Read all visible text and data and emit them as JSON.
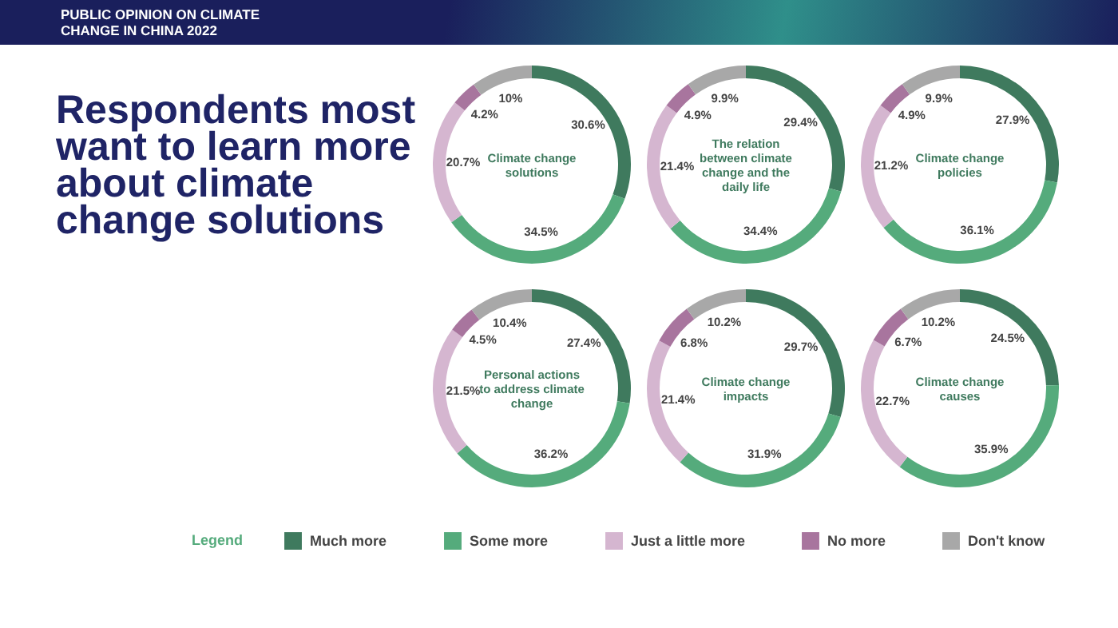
{
  "chart_data": [
    {
      "type": "other",
      "title": "Respondents most want to learn more about climate change solutions",
      "subtitle": "PUBLIC OPINION ON CLIMATE CHANGE IN CHINA 2022"
    },
    {
      "type": "donut",
      "title": "Climate change solutions",
      "categories": [
        "Much more",
        "Some more",
        "Just a little more",
        "No more",
        "Don't know"
      ],
      "values": [
        30.6,
        34.5,
        20.7,
        4.2,
        10
      ],
      "colors": [
        "#3f7a5e",
        "#55ab7c",
        "#d5b6d0",
        "#a8759e",
        "#a8a8a8"
      ],
      "value_labels": [
        "30.6%",
        "34.5%",
        "20.7%",
        "4.2%",
        "10%"
      ],
      "legend": "bottom",
      "legend_title": "Legend"
    },
    {
      "type": "donut",
      "title": "The relation between climate change and the daily life",
      "values": [
        29.4,
        34.4,
        21.4,
        4.9,
        9.9
      ],
      "colors": [
        "#3f7a5e",
        "#55ab7c",
        "#d5b6d0",
        "#a8759e",
        "#a8a8a8"
      ],
      "value_labels": [
        "29.4%",
        "34.4%",
        "21.4%",
        "4.9%",
        "9.9%"
      ]
    },
    {
      "type": "donut",
      "title": "Climate change policies",
      "values": [
        27.9,
        36.1,
        21.2,
        4.9,
        9.9
      ],
      "colors": [
        "#3f7a5e",
        "#55ab7c",
        "#d5b6d0",
        "#a8759e",
        "#a8a8a8"
      ],
      "value_labels": [
        "27.9%",
        "36.1%",
        "21.2%",
        "4.9%",
        "9.9%"
      ]
    },
    {
      "type": "donut",
      "title": "Personal actions to address climate change",
      "values": [
        27.4,
        36.2,
        21.5,
        4.5,
        10.4
      ],
      "colors": [
        "#3f7a5e",
        "#55ab7c",
        "#d5b6d0",
        "#a8759e",
        "#a8a8a8"
      ],
      "value_labels": [
        "27.4%",
        "36.2%",
        "21.5%",
        "4.5%",
        "10.4%"
      ]
    },
    {
      "type": "donut",
      "title": "Climate change impacts",
      "values": [
        29.7,
        31.9,
        21.4,
        6.8,
        10.2
      ],
      "colors": [
        "#3f7a5e",
        "#55ab7c",
        "#d5b6d0",
        "#a8759e",
        "#a8a8a8"
      ],
      "value_labels": [
        "29.7%",
        "31.9%",
        "21.4%",
        "6.8%",
        "10.2%"
      ]
    },
    {
      "type": "donut",
      "title": "Climate change causes",
      "values": [
        24.5,
        35.9,
        22.7,
        6.7,
        10.2
      ],
      "colors": [
        "#3f7a5e",
        "#55ab7c",
        "#d5b6d0",
        "#a8759e",
        "#a8a8a8"
      ],
      "value_labels": [
        "24.5%",
        "35.9%",
        "22.7%",
        "6.7%",
        "10.2%"
      ]
    }
  ]
}
